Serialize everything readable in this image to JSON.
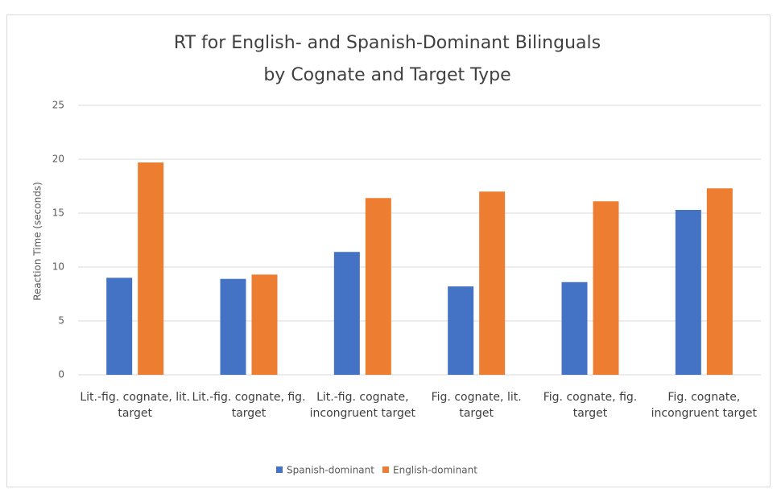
{
  "chart_data": {
    "type": "bar",
    "title": [
      "RT for English- and Spanish-Dominant Bilinguals",
      "by Cognate and Target Type"
    ],
    "y_label": "Reaction Time (seconds)",
    "categories": [
      "Lit.-fig. cognate, lit. target",
      "Lit.-fig. cognate, fig. target",
      "Lit.-fig. cognate, incongruent target",
      "Fig. cognate, lit. target",
      "Fig. cognate, fig. target",
      "Fig. cognate, incongruent target"
    ],
    "series": [
      {
        "name": "Spanish-dominant",
        "color": "#4472c4",
        "values": [
          9.0,
          8.9,
          11.4,
          8.2,
          8.6,
          15.3
        ]
      },
      {
        "name": "English-dominant",
        "color": "#ed7d31",
        "values": [
          19.7,
          9.3,
          16.4,
          17.0,
          16.1,
          17.3
        ]
      }
    ],
    "ylim": [
      0,
      25
    ],
    "yticks": [
      0,
      5,
      10,
      15,
      20,
      25
    ],
    "grid": true,
    "legend": "bottom"
  }
}
